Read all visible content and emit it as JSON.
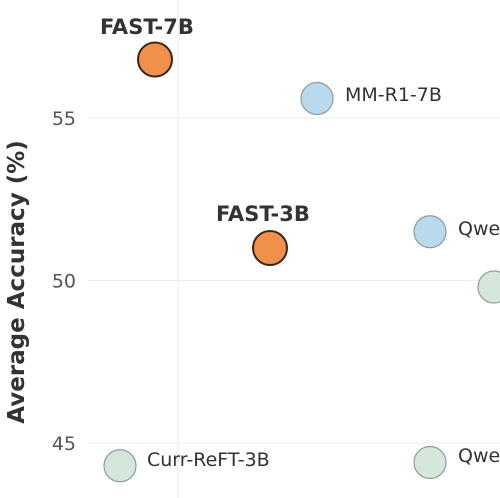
{
  "chart_data": {
    "type": "scatter",
    "title": "",
    "ylabel": "Average Accuracy (%)",
    "xlabel": "",
    "ylim": [
      43.5,
      58.5
    ],
    "yticks": [
      45,
      50,
      55
    ],
    "grid": true,
    "points": [
      {
        "label": "FAST-7B",
        "y": 56.8,
        "color": "#f0904a",
        "highlight": true
      },
      {
        "label": "MM-R1-7B",
        "y": 55.6,
        "color": "#b9d9ee",
        "highlight": false
      },
      {
        "label": "FAST-3B",
        "y": 51.0,
        "color": "#f0904a",
        "highlight": true
      },
      {
        "label": "Qwe",
        "y": 51.5,
        "color": "#b9d9ee",
        "highlight": false
      },
      {
        "label": "",
        "y": 49.8,
        "color": "#d5e7da",
        "highlight": false
      },
      {
        "label": "Curr-ReFT-3B",
        "y": 44.3,
        "color": "#d5e7da",
        "highlight": false
      },
      {
        "label": "Qwe",
        "y": 44.4,
        "color": "#d5e7da",
        "highlight": false
      }
    ]
  }
}
